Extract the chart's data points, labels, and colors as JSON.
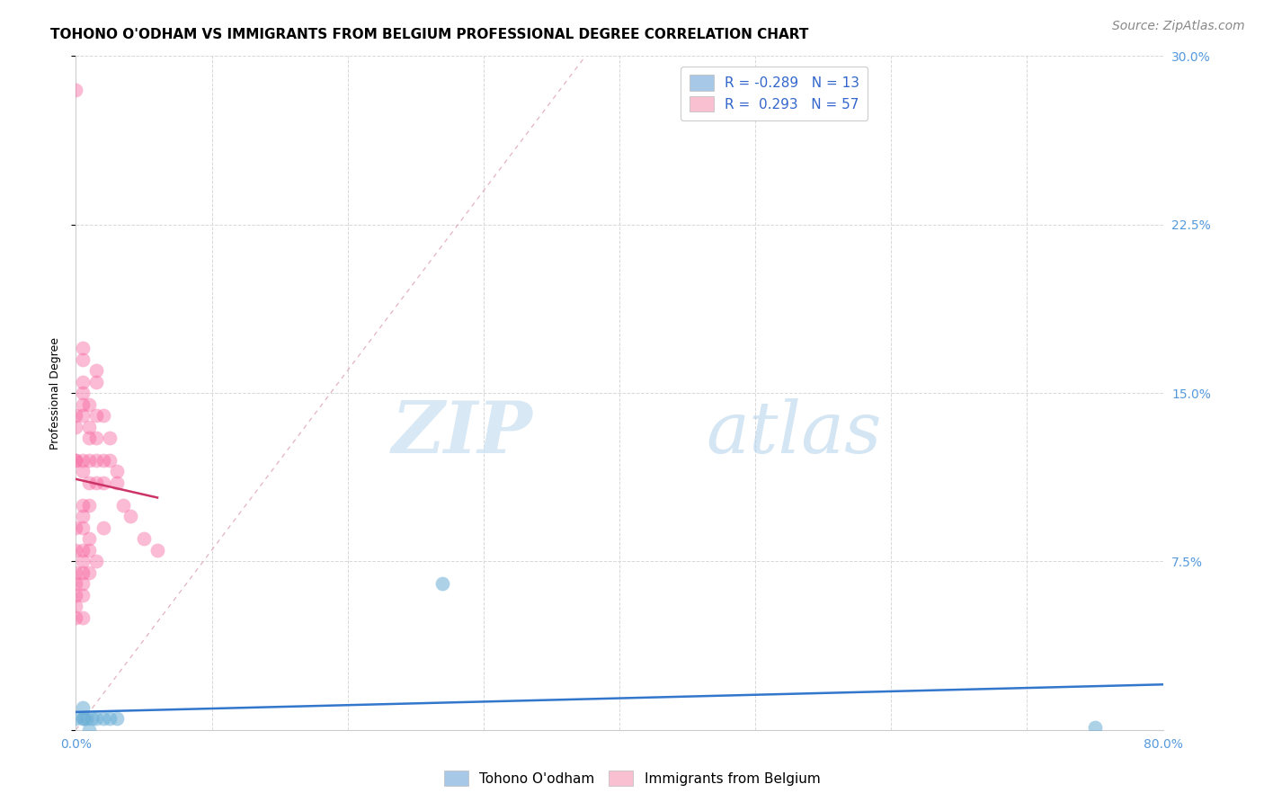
{
  "title": "TOHONO O'ODHAM VS IMMIGRANTS FROM BELGIUM PROFESSIONAL DEGREE CORRELATION CHART",
  "source": "Source: ZipAtlas.com",
  "ylabel": "Professional Degree",
  "xlim": [
    0,
    0.8
  ],
  "ylim": [
    0,
    0.3
  ],
  "xticks": [
    0.0,
    0.1,
    0.2,
    0.3,
    0.4,
    0.5,
    0.6,
    0.7,
    0.8
  ],
  "xticklabels": [
    "0.0%",
    "",
    "",
    "",
    "",
    "",
    "",
    "",
    "80.0%"
  ],
  "yticks": [
    0.0,
    0.075,
    0.15,
    0.225,
    0.3
  ],
  "yticklabels": [
    "",
    "7.5%",
    "15.0%",
    "22.5%",
    "30.0%"
  ],
  "watermark_zip": "ZIP",
  "watermark_atlas": "atlas",
  "blue_color": "#6baed6",
  "pink_color": "#f768a1",
  "blue_trendline_color": "#3377cc",
  "pink_trendline_color": "#cc3366",
  "diagonal_color": "#dda0b0",
  "grid_color": "#d8d8d8",
  "blue_points_x": [
    0.0,
    0.005,
    0.005,
    0.006,
    0.008,
    0.01,
    0.012,
    0.015,
    0.02,
    0.025,
    0.03,
    0.27,
    0.75
  ],
  "blue_points_y": [
    0.005,
    0.005,
    0.01,
    0.005,
    0.005,
    0.0,
    0.005,
    0.005,
    0.005,
    0.005,
    0.005,
    0.065,
    0.001
  ],
  "pink_points_x": [
    0.0,
    0.0,
    0.0,
    0.0,
    0.0,
    0.0,
    0.0,
    0.0,
    0.0,
    0.0,
    0.0,
    0.0,
    0.005,
    0.005,
    0.005,
    0.005,
    0.005,
    0.005,
    0.005,
    0.005,
    0.005,
    0.005,
    0.005,
    0.005,
    0.005,
    0.005,
    0.005,
    0.005,
    0.005,
    0.01,
    0.01,
    0.01,
    0.01,
    0.01,
    0.01,
    0.01,
    0.01,
    0.01,
    0.015,
    0.015,
    0.015,
    0.015,
    0.015,
    0.015,
    0.015,
    0.02,
    0.02,
    0.02,
    0.02,
    0.025,
    0.025,
    0.03,
    0.03,
    0.035,
    0.04,
    0.05,
    0.06
  ],
  "pink_points_y": [
    0.285,
    0.14,
    0.135,
    0.12,
    0.12,
    0.09,
    0.08,
    0.07,
    0.065,
    0.06,
    0.055,
    0.05,
    0.17,
    0.165,
    0.155,
    0.15,
    0.145,
    0.14,
    0.12,
    0.115,
    0.1,
    0.095,
    0.09,
    0.08,
    0.075,
    0.07,
    0.065,
    0.06,
    0.05,
    0.145,
    0.135,
    0.13,
    0.12,
    0.11,
    0.1,
    0.085,
    0.08,
    0.07,
    0.16,
    0.155,
    0.14,
    0.13,
    0.12,
    0.11,
    0.075,
    0.14,
    0.12,
    0.11,
    0.09,
    0.13,
    0.12,
    0.115,
    0.11,
    0.1,
    0.095,
    0.085,
    0.08
  ],
  "title_fontsize": 11,
  "axis_fontsize": 9,
  "tick_fontsize": 10,
  "legend_fontsize": 11,
  "source_fontsize": 10,
  "tick_color": "#5599dd",
  "legend_label_color": "#3366cc"
}
